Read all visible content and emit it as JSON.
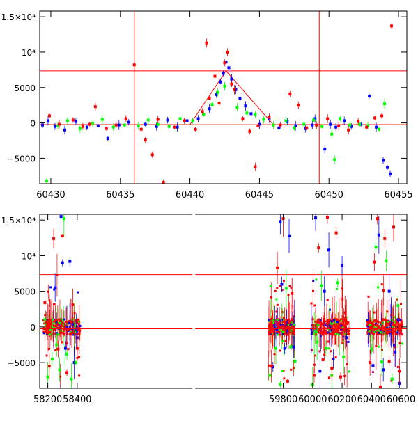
{
  "chart_data": [
    {
      "type": "scatter",
      "title": "",
      "xlabel": "",
      "ylabel": "",
      "xlim": [
        60429.2,
        60455.6
      ],
      "ylim": [
        -8600,
        15800
      ],
      "x_ticks": [
        60430,
        60435,
        60440,
        60445,
        60450,
        60455
      ],
      "x_tick_labels": [
        "60430",
        "60435",
        "60440",
        "60445",
        "60450",
        "60455"
      ],
      "y_ticks": [
        -5000,
        0,
        5000,
        10000,
        15000
      ],
      "y_tick_labels": [
        "−5000",
        "0",
        "5000",
        "10⁴",
        "1.5×10⁴"
      ],
      "colors": {
        "blue": "#0000ff",
        "green": "#00ff00",
        "red": "#ff0000",
        "model": "#ff0000"
      },
      "horizontal_lines": [
        7350,
        -250
      ],
      "vertical_lines": [
        60436.0,
        60449.3
      ],
      "model_curve": {
        "x": [
          60429.2,
          60440.0,
          60442.6,
          60446.0,
          60455.6
        ],
        "y": [
          -250,
          -250,
          7350,
          -250,
          -250
        ]
      },
      "series": [
        {
          "color": "blue",
          "x": [
            60429.4,
            60429.8,
            60430.3,
            60431.0,
            60431.8,
            60432.6,
            60433.4,
            60434.1,
            60434.9,
            60435.6,
            60436.8,
            60437.6,
            60438.4,
            60439.1,
            60439.8,
            60440.6,
            60441.4,
            60441.9,
            60442.2,
            60442.4,
            60442.6,
            60442.8,
            60443.0,
            60443.3,
            60443.6,
            60444.0,
            60444.4,
            60445.0,
            60445.7,
            60446.4,
            60447.0,
            60447.6,
            60448.3,
            60448.8,
            60449.0,
            60449.7,
            60450.1,
            60450.5,
            60451.1,
            60451.6,
            60452.3,
            60452.9,
            60453.4,
            60453.9,
            60454.2,
            60454.4
          ],
          "y": [
            -300,
            300,
            -500,
            -1000,
            200,
            -600,
            -400,
            -2200,
            -300,
            100,
            -200,
            -500,
            400,
            -600,
            300,
            600,
            2000,
            4000,
            5800,
            7000,
            8600,
            7800,
            6200,
            4700,
            3500,
            2400,
            1300,
            -200,
            600,
            -700,
            200,
            -400,
            -800,
            -300,
            600,
            -3700,
            -200,
            -600,
            300,
            -500,
            -200,
            3800,
            -600,
            -5300,
            -6300,
            -7200
          ]
        },
        {
          "color": "green",
          "x": [
            60429.7,
            60430.5,
            60431.2,
            60432.1,
            60433.0,
            60433.7,
            60434.5,
            60435.3,
            60436.3,
            60437.0,
            60437.7,
            60438.5,
            60439.3,
            60440.2,
            60441.0,
            60441.6,
            60442.0,
            60442.5,
            60443.4,
            60444.1,
            60444.7,
            60445.3,
            60446.0,
            60446.9,
            60447.5,
            60448.2,
            60448.9,
            60449.5,
            60450.2,
            60450.4,
            60450.8,
            60451.5,
            60452.2,
            60452.8,
            60453.6,
            60454.0
          ],
          "y": [
            -8200,
            -400,
            300,
            -800,
            -100,
            500,
            -600,
            -300,
            -400,
            400,
            -200,
            -500,
            600,
            300,
            1200,
            2600,
            4300,
            5200,
            2200,
            1400,
            1200,
            500,
            -300,
            300,
            -700,
            -200,
            400,
            -500,
            -1600,
            -5200,
            600,
            -300,
            -200,
            -400,
            -900,
            2700
          ]
        },
        {
          "color": "red",
          "x": [
            60429.9,
            60430.6,
            60431.6,
            60432.3,
            60432.8,
            60433.2,
            60434.0,
            60434.7,
            60435.4,
            60436.0,
            60436.5,
            60436.8,
            60437.3,
            60437.7,
            60438.1,
            60438.9,
            60439.6,
            60440.4,
            60440.9,
            60441.2,
            60441.4,
            60441.8,
            60442.1,
            60442.5,
            60442.7,
            60443.0,
            60443.2,
            60443.8,
            60444.3,
            60444.7,
            60444.9,
            60445.7,
            60446.5,
            60447.2,
            60447.8,
            60448.4,
            60449.1,
            60449.9,
            60450.7,
            60451.4,
            60452.1,
            60452.7,
            60453.3,
            60453.8,
            60454.5
          ],
          "y": [
            1000,
            -200,
            400,
            -500,
            -200,
            2300,
            -800,
            -300,
            600,
            8200,
            -900,
            -2400,
            -4500,
            500,
            -8400,
            -600,
            300,
            -900,
            1600,
            11300,
            3500,
            6600,
            2800,
            8500,
            10000,
            5500,
            4700,
            600,
            -1200,
            -6200,
            -400,
            800,
            -300,
            4100,
            2500,
            -700,
            -300,
            600,
            -400,
            -1000,
            200,
            -600,
            700,
            1000,
            13700
          ]
        }
      ]
    },
    {
      "type": "scatter",
      "title": "",
      "xlabel": "",
      "ylabel": "",
      "xlim": [
        58145,
        60640
      ],
      "ylim": [
        -8600,
        15800
      ],
      "x_ticks": [
        58200,
        58400,
        59800,
        60000,
        60200,
        60400,
        60600
      ],
      "x_tick_labels": [
        "58200",
        "58400",
        "59800",
        "60000",
        "60200",
        "60400",
        "60600"
      ],
      "y_ticks": [
        -5000,
        0,
        5000,
        10000,
        15000
      ],
      "y_tick_labels": [
        "−5000",
        "0",
        "5000",
        "10⁴",
        "1.5×10⁴"
      ],
      "colors": {
        "blue": "#0000ff",
        "green": "#00ff00",
        "red": "#ff0000"
      },
      "horizontal_lines": [
        7350,
        -250
      ],
      "seasons": [
        {
          "start": 58170,
          "end": 58420
        },
        {
          "start": 59700,
          "end": 59880
        },
        {
          "start": 59990,
          "end": 60250
        },
        {
          "start": 60370,
          "end": 60610
        }
      ],
      "series": [
        {
          "color": "blue",
          "x": [
            58250,
            58290,
            58300,
            58320,
            58350,
            58380,
            58400,
            59730,
            59780,
            59790,
            59810,
            59840,
            59870,
            60020,
            60050,
            60080,
            60110,
            60140,
            60200,
            60230,
            60410,
            60450,
            60480,
            60520,
            60560,
            60590
          ],
          "y": [
            5500,
            15500,
            9000,
            -3000,
            9200,
            -5000,
            -1500,
            -5600,
            14800,
            6000,
            -3000,
            12800,
            -2800,
            15300,
            -6200,
            5000,
            10800,
            -4500,
            8600,
            -1500,
            -5400,
            12900,
            -6000,
            5000,
            -3500,
            -7900
          ]
        },
        {
          "color": "green",
          "x": [
            58200,
            58230,
            58260,
            58280,
            58310,
            58330,
            58360,
            58390,
            59710,
            59750,
            59780,
            59820,
            59850,
            59880,
            60000,
            60030,
            60060,
            60090,
            60130,
            60170,
            60210,
            60400,
            60430,
            60470,
            60500,
            60540,
            60580
          ],
          "y": [
            -7000,
            -4500,
            -2500,
            -6000,
            15200,
            -3800,
            -7300,
            -5000,
            -6800,
            -3000,
            -8000,
            5400,
            -2800,
            -4800,
            -8100,
            -2100,
            5800,
            -3000,
            -6800,
            6200,
            -4200,
            -3100,
            11200,
            -4900,
            9300,
            -7300,
            3000
          ]
        },
        {
          "color": "red",
          "x": [
            58180,
            58210,
            58240,
            58270,
            58300,
            58330,
            58370,
            58400,
            59720,
            59760,
            59800,
            59830,
            59860,
            60010,
            60040,
            60070,
            60100,
            60130,
            60160,
            60190,
            60220,
            60390,
            60420,
            60440,
            60460,
            60490,
            60520,
            60550,
            60590
          ],
          "y": [
            3400,
            -5500,
            12400,
            -3100,
            12800,
            -6400,
            3100,
            -3000,
            -5500,
            8300,
            15200,
            -7600,
            4700,
            -6800,
            11100,
            -4600,
            15400,
            -5800,
            13200,
            -7000,
            2000,
            -5000,
            9100,
            15200,
            -8400,
            12400,
            -4800,
            14000,
            -6200
          ]
        }
      ]
    }
  ]
}
